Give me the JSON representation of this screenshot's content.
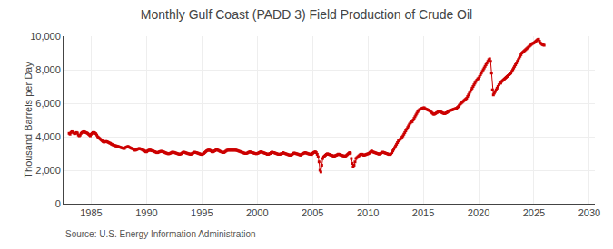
{
  "chart_data": {
    "type": "line",
    "title": "Monthly Gulf Coast (PADD 3) Field Production of Crude Oil",
    "ylabel": "Thousand Barrels per Day",
    "annotations": [
      "Source: U.S. Energy Information Administration"
    ],
    "color": "#cc0000",
    "marker": "square",
    "grid": true,
    "xlim": [
      1982.5,
      2030.5
    ],
    "xticks": [
      1985,
      1990,
      1995,
      2000,
      2005,
      2010,
      2015,
      2020,
      2025,
      2030
    ],
    "ylim": [
      0,
      10000
    ],
    "yticks": [
      0,
      {
        "value": 2000,
        "label": "2,000"
      },
      {
        "value": 4000,
        "label": "4,000"
      },
      {
        "value": 6000,
        "label": "6,000"
      },
      {
        "value": 8000,
        "label": "8,000"
      },
      {
        "value": 10000,
        "label": "10,000"
      }
    ],
    "x": [
      1983,
      1983.0833,
      1983.1667,
      1983.25,
      1983.3333,
      1983.4167,
      1983.5,
      1983.5833,
      1983.6667,
      1983.75,
      1983.8333,
      1983.9167,
      1984,
      1984.0833,
      1984.1667,
      1984.25,
      1984.3333,
      1984.4167,
      1984.5,
      1984.5833,
      1984.6667,
      1984.75,
      1984.8333,
      1984.9167,
      1985,
      1985.0833,
      1985.1667,
      1985.25,
      1985.3333,
      1985.4167,
      1985.5,
      1985.5833,
      1985.6667,
      1985.75,
      1985.8333,
      1985.9167,
      1986,
      1986.0833,
      1986.1667,
      1986.25,
      1986.3333,
      1986.4167,
      1986.5,
      1986.5833,
      1986.6667,
      1986.75,
      1986.8333,
      1986.9167,
      1987,
      1987.0833,
      1987.1667,
      1987.25,
      1987.3333,
      1987.4167,
      1987.5,
      1987.5833,
      1987.6667,
      1987.75,
      1987.8333,
      1987.9167,
      1988,
      1988.0833,
      1988.1667,
      1988.25,
      1988.3333,
      1988.4167,
      1988.5,
      1988.5833,
      1988.6667,
      1988.75,
      1988.8333,
      1988.9167,
      1989,
      1989.0833,
      1989.1667,
      1989.25,
      1989.3333,
      1989.4167,
      1989.5,
      1989.5833,
      1989.6667,
      1989.75,
      1989.8333,
      1989.9167,
      1990,
      1990.0833,
      1990.1667,
      1990.25,
      1990.3333,
      1990.4167,
      1990.5,
      1990.5833,
      1990.6667,
      1990.75,
      1990.8333,
      1990.9167,
      1991,
      1991.0833,
      1991.1667,
      1991.25,
      1991.3333,
      1991.4167,
      1991.5,
      1991.5833,
      1991.6667,
      1991.75,
      1991.8333,
      1991.9167,
      1992,
      1992.0833,
      1992.1667,
      1992.25,
      1992.3333,
      1992.4167,
      1992.5,
      1992.5833,
      1992.6667,
      1992.75,
      1992.8333,
      1992.9167,
      1993,
      1993.0833,
      1993.1667,
      1993.25,
      1993.3333,
      1993.4167,
      1993.5,
      1993.5833,
      1993.6667,
      1993.75,
      1993.8333,
      1993.9167,
      1994,
      1994.0833,
      1994.1667,
      1994.25,
      1994.3333,
      1994.4167,
      1994.5,
      1994.5833,
      1994.6667,
      1994.75,
      1994.8333,
      1994.9167,
      1995,
      1995.0833,
      1995.1667,
      1995.25,
      1995.3333,
      1995.4167,
      1995.5,
      1995.5833,
      1995.6667,
      1995.75,
      1995.8333,
      1995.9167,
      1996,
      1996.0833,
      1996.1667,
      1996.25,
      1996.3333,
      1996.4167,
      1996.5,
      1996.5833,
      1996.6667,
      1996.75,
      1996.8333,
      1996.9167,
      1997,
      1997.0833,
      1997.1667,
      1997.25,
      1997.3333,
      1997.4167,
      1997.5,
      1997.5833,
      1997.6667,
      1997.75,
      1997.8333,
      1997.9167,
      1998,
      1998.0833,
      1998.1667,
      1998.25,
      1998.3333,
      1998.4167,
      1998.5,
      1998.5833,
      1998.6667,
      1998.75,
      1998.8333,
      1998.9167,
      1999,
      1999.0833,
      1999.1667,
      1999.25,
      1999.3333,
      1999.4167,
      1999.5,
      1999.5833,
      1999.6667,
      1999.75,
      1999.8333,
      1999.9167,
      2000,
      2000.0833,
      2000.1667,
      2000.25,
      2000.3333,
      2000.4167,
      2000.5,
      2000.5833,
      2000.6667,
      2000.75,
      2000.8333,
      2000.9167,
      2001,
      2001.0833,
      2001.1667,
      2001.25,
      2001.3333,
      2001.4167,
      2001.5,
      2001.5833,
      2001.6667,
      2001.75,
      2001.8333,
      2001.9167,
      2002,
      2002.0833,
      2002.1667,
      2002.25,
      2002.3333,
      2002.4167,
      2002.5,
      2002.5833,
      2002.6667,
      2002.75,
      2002.8333,
      2002.9167,
      2003,
      2003.0833,
      2003.1667,
      2003.25,
      2003.3333,
      2003.4167,
      2003.5,
      2003.5833,
      2003.6667,
      2003.75,
      2003.8333,
      2003.9167,
      2004,
      2004.0833,
      2004.1667,
      2004.25,
      2004.3333,
      2004.4167,
      2004.5,
      2004.5833,
      2004.6667,
      2004.75,
      2004.8333,
      2004.9167,
      2005,
      2005.0833,
      2005.1667,
      2005.25,
      2005.3333,
      2005.4167,
      2005.5,
      2005.5833,
      2005.6667,
      2005.75,
      2005.8333,
      2005.9167,
      2006,
      2006.0833,
      2006.1667,
      2006.25,
      2006.3333,
      2006.4167,
      2006.5,
      2006.5833,
      2006.6667,
      2006.75,
      2006.8333,
      2006.9167,
      2007,
      2007.0833,
      2007.1667,
      2007.25,
      2007.3333,
      2007.4167,
      2007.5,
      2007.5833,
      2007.6667,
      2007.75,
      2007.8333,
      2007.9167,
      2008,
      2008.0833,
      2008.1667,
      2008.25,
      2008.3333,
      2008.4167,
      2008.5,
      2008.5833,
      2008.6667,
      2008.75,
      2008.8333,
      2008.9167,
      2009,
      2009.0833,
      2009.1667,
      2009.25,
      2009.3333,
      2009.4167,
      2009.5,
      2009.5833,
      2009.6667,
      2009.75,
      2009.8333,
      2009.9167,
      2010,
      2010.0833,
      2010.1667,
      2010.25,
      2010.3333,
      2010.4167,
      2010.5,
      2010.5833,
      2010.6667,
      2010.75,
      2010.8333,
      2010.9167,
      2011,
      2011.0833,
      2011.1667,
      2011.25,
      2011.3333,
      2011.4167,
      2011.5,
      2011.5833,
      2011.6667,
      2011.75,
      2011.8333,
      2011.9167,
      2012,
      2012.0833,
      2012.1667,
      2012.25,
      2012.3333,
      2012.4167,
      2012.5,
      2012.5833,
      2012.6667,
      2012.75,
      2012.8333,
      2012.9167,
      2013,
      2013.0833,
      2013.1667,
      2013.25,
      2013.3333,
      2013.4167,
      2013.5,
      2013.5833,
      2013.6667,
      2013.75,
      2013.8333,
      2013.9167,
      2014,
      2014.0833,
      2014.1667,
      2014.25,
      2014.3333,
      2014.4167,
      2014.5,
      2014.5833,
      2014.6667,
      2014.75,
      2014.8333,
      2014.9167,
      2015,
      2015.0833,
      2015.1667,
      2015.25,
      2015.3333,
      2015.4167,
      2015.5,
      2015.5833,
      2015.6667,
      2015.75,
      2015.8333,
      2015.9167,
      2016,
      2016.0833,
      2016.1667,
      2016.25,
      2016.3333,
      2016.4167,
      2016.5,
      2016.5833,
      2016.6667,
      2016.75,
      2016.8333,
      2016.9167,
      2017,
      2017.0833,
      2017.1667,
      2017.25,
      2017.3333,
      2017.4167,
      2017.5,
      2017.5833,
      2017.6667,
      2017.75,
      2017.8333,
      2017.9167,
      2018,
      2018.0833,
      2018.1667,
      2018.25,
      2018.3333,
      2018.4167,
      2018.5,
      2018.5833,
      2018.6667,
      2018.75,
      2018.8333,
      2018.9167,
      2019,
      2019.0833,
      2019.1667,
      2019.25,
      2019.3333,
      2019.4167,
      2019.5,
      2019.5833,
      2019.6667,
      2019.75,
      2019.8333,
      2019.9167,
      2020,
      2020.0833,
      2020.1667,
      2020.25,
      2020.3333,
      2020.4167,
      2020.5,
      2020.5833,
      2020.6667,
      2020.75,
      2020.8333,
      2020.9167,
      2021,
      2021.0833,
      2021.1667,
      2021.25,
      2021.3333,
      2021.4167,
      2021.5,
      2021.5833,
      2021.6667,
      2021.75,
      2021.8333,
      2021.9167,
      2022,
      2022.0833,
      2022.1667,
      2022.25,
      2022.3333,
      2022.4167,
      2022.5,
      2022.5833,
      2022.6667,
      2022.75,
      2022.8333,
      2022.9167,
      2023,
      2023.0833,
      2023.1667,
      2023.25,
      2023.3333,
      2023.4167,
      2023.5,
      2023.5833,
      2023.6667,
      2023.75,
      2023.8333,
      2023.9167,
      2024,
      2024.0833,
      2024.1667,
      2024.25,
      2024.3333,
      2024.4167,
      2024.5,
      2024.5833,
      2024.6667,
      2024.75,
      2024.8333,
      2024.9167,
      2025,
      2025.0833,
      2025.1667,
      2025.25,
      2025.3333,
      2025.4167,
      2025.5,
      2025.5833,
      2025.6667,
      2025.75,
      2025.8333,
      2025.9167
    ],
    "values": [
      4200,
      4150,
      4250,
      4300,
      4280,
      4220,
      4180,
      4200,
      4250,
      4220,
      4100,
      4050,
      4100,
      4200,
      4250,
      4280,
      4300,
      4280,
      4250,
      4230,
      4200,
      4150,
      4100,
      4050,
      4150,
      4200,
      4250,
      4250,
      4220,
      4180,
      4100,
      4000,
      3950,
      3900,
      3850,
      3800,
      3750,
      3700,
      3680,
      3700,
      3720,
      3700,
      3680,
      3650,
      3620,
      3600,
      3550,
      3530,
      3500,
      3480,
      3460,
      3450,
      3430,
      3420,
      3400,
      3380,
      3360,
      3340,
      3320,
      3300,
      3300,
      3350,
      3380,
      3400,
      3420,
      3380,
      3350,
      3320,
      3300,
      3280,
      3250,
      3200,
      3200,
      3220,
      3250,
      3280,
      3300,
      3280,
      3260,
      3240,
      3200,
      3180,
      3150,
      3100,
      3100,
      3150,
      3180,
      3200,
      3200,
      3180,
      3160,
      3150,
      3120,
      3100,
      3080,
      3050,
      3050,
      3080,
      3100,
      3120,
      3130,
      3120,
      3100,
      3080,
      3050,
      3030,
      3010,
      2990,
      2980,
      3000,
      3020,
      3050,
      3080,
      3070,
      3060,
      3040,
      3020,
      3000,
      2980,
      2960,
      2950,
      2970,
      3000,
      3050,
      3080,
      3070,
      3050,
      3030,
      3010,
      2990,
      2980,
      2960,
      2950,
      2980,
      3010,
      3050,
      3080,
      3060,
      3050,
      3030,
      3010,
      2990,
      2970,
      2950,
      2940,
      2970,
      3000,
      3050,
      3100,
      3150,
      3180,
      3200,
      3200,
      3180,
      3150,
      3100,
      3100,
      3130,
      3160,
      3200,
      3220,
      3200,
      3180,
      3150,
      3120,
      3100,
      3080,
      3060,
      3060,
      3100,
      3140,
      3180,
      3200,
      3200,
      3200,
      3200,
      3200,
      3200,
      3200,
      3200,
      3200,
      3200,
      3180,
      3160,
      3140,
      3120,
      3100,
      3080,
      3060,
      3040,
      3020,
      3000,
      3000,
      3020,
      3050,
      3080,
      3100,
      3080,
      3060,
      3050,
      3030,
      3010,
      3000,
      2980,
      3000,
      3020,
      3050,
      3080,
      3100,
      3080,
      3060,
      3040,
      3020,
      3000,
      2980,
      2950,
      2950,
      2980,
      3000,
      3050,
      3080,
      3060,
      3050,
      3030,
      3010,
      2990,
      2970,
      2950,
      2950,
      2960,
      2980,
      3000,
      3050,
      3020,
      3000,
      2980,
      2960,
      2940,
      2920,
      2900,
      2900,
      2920,
      2950,
      3000,
      3030,
      3010,
      2990,
      2980,
      2960,
      2940,
      2920,
      2900,
      2950,
      2980,
      3000,
      3030,
      3050,
      3030,
      3010,
      2990,
      2970,
      2960,
      2950,
      2940,
      3000,
      3050,
      3080,
      3100,
      3050,
      2950,
      2800,
      2500,
      2000,
      1900,
      2300,
      2700,
      2800,
      2850,
      2900,
      2950,
      2980,
      2960,
      2940,
      2920,
      2900,
      2880,
      2860,
      2840,
      2850,
      2880,
      2900,
      2930,
      2960,
      2940,
      2920,
      2900,
      2880,
      2860,
      2850,
      2840,
      2850,
      2900,
      2950,
      3000,
      3050,
      3020,
      2700,
      2400,
      2200,
      2300,
      2500,
      2700,
      2750,
      2800,
      2850,
      2900,
      2950,
      2950,
      2950,
      2900,
      2900,
      2920,
      2940,
      2960,
      2980,
      3000,
      3050,
      3100,
      3150,
      3100,
      3080,
      3060,
      3040,
      3020,
      3000,
      2980,
      2960,
      2980,
      3010,
      3050,
      3080,
      3060,
      3040,
      3020,
      3000,
      2980,
      2960,
      2940,
      2950,
      2980,
      3050,
      3150,
      3250,
      3350,
      3450,
      3550,
      3650,
      3750,
      3800,
      3850,
      3900,
      3980,
      4050,
      4150,
      4250,
      4350,
      4450,
      4550,
      4650,
      4750,
      4820,
      4880,
      4900,
      5000,
      5100,
      5200,
      5300,
      5400,
      5500,
      5570,
      5620,
      5650,
      5680,
      5700,
      5720,
      5730,
      5680,
      5650,
      5630,
      5600,
      5580,
      5550,
      5500,
      5450,
      5400,
      5350,
      5350,
      5380,
      5420,
      5450,
      5480,
      5500,
      5500,
      5480,
      5450,
      5420,
      5400,
      5380,
      5400,
      5430,
      5460,
      5500,
      5550,
      5570,
      5580,
      5600,
      5620,
      5640,
      5660,
      5680,
      5700,
      5750,
      5800,
      5880,
      5950,
      6000,
      6050,
      6100,
      6150,
      6200,
      6250,
      6300,
      6400,
      6500,
      6600,
      6700,
      6800,
      6900,
      7000,
      7100,
      7200,
      7300,
      7380,
      7450,
      7500,
      7600,
      7700,
      7800,
      7900,
      8000,
      8100,
      8200,
      8300,
      8400,
      8500,
      8600,
      8650,
      8500,
      7800,
      6800,
      6500,
      6600,
      6700,
      6800,
      6900,
      7000,
      7100,
      7200,
      7200,
      7300,
      7350,
      7400,
      7450,
      7500,
      7550,
      7600,
      7650,
      7700,
      7750,
      7800,
      7900,
      8000,
      8100,
      8200,
      8300,
      8400,
      8500,
      8600,
      8700,
      8800,
      8900,
      9000,
      9050,
      9100,
      9150,
      9200,
      9250,
      9300,
      9350,
      9400,
      9450,
      9500,
      9550,
      9580,
      9600,
      9650,
      9700,
      9750,
      9800,
      9820,
      9700,
      9600,
      9550,
      9500,
      9480,
      9460
    ]
  }
}
